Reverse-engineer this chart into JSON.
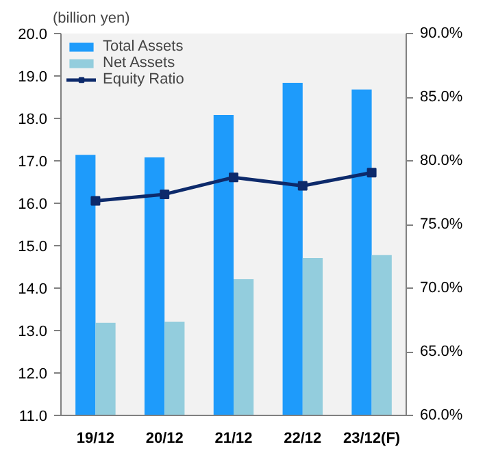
{
  "chart_data": {
    "type": "bar",
    "ylabel": "(billion yen)",
    "categories": [
      "19/12",
      "20/12",
      "21/12",
      "22/12",
      "23/12(F)"
    ],
    "series": [
      {
        "name": "Total Assets",
        "color": "#1e9bfb",
        "values": [
          17.14,
          17.08,
          18.08,
          18.84,
          18.68
        ]
      },
      {
        "name": "Net Assets",
        "color": "#93cddd",
        "values": [
          13.18,
          13.21,
          14.21,
          14.71,
          14.78
        ]
      },
      {
        "name": "Equity Ratio",
        "type": "line",
        "axis": "y2",
        "color": "#0d2a6b",
        "marker": "square",
        "values": [
          76.85,
          77.37,
          78.7,
          78.04,
          79.07
        ]
      }
    ],
    "ylim": [
      11,
      20
    ],
    "yticks": [
      {
        "value": 11,
        "label": "11.0"
      },
      {
        "value": 12,
        "label": "12.0"
      },
      {
        "value": 13,
        "label": "13.0"
      },
      {
        "value": 14,
        "label": "14.0"
      },
      {
        "value": 15,
        "label": "15.0"
      },
      {
        "value": 16,
        "label": "16.0"
      },
      {
        "value": 17,
        "label": "17.0"
      },
      {
        "value": 18,
        "label": "18.0"
      },
      {
        "value": 19,
        "label": "19.0"
      },
      {
        "value": 20,
        "label": "20.0"
      }
    ],
    "y2lim": [
      60,
      90
    ],
    "y2ticks": [
      {
        "value": 60,
        "label": "60.0%"
      },
      {
        "value": 65,
        "label": "65.0%"
      },
      {
        "value": 70,
        "label": "70.0%"
      },
      {
        "value": 75,
        "label": "75.0%"
      },
      {
        "value": 80,
        "label": "80.0%"
      },
      {
        "value": 85,
        "label": "85.0%"
      },
      {
        "value": 90,
        "label": "90.0%"
      }
    ],
    "grid": false,
    "legend": "top left"
  }
}
